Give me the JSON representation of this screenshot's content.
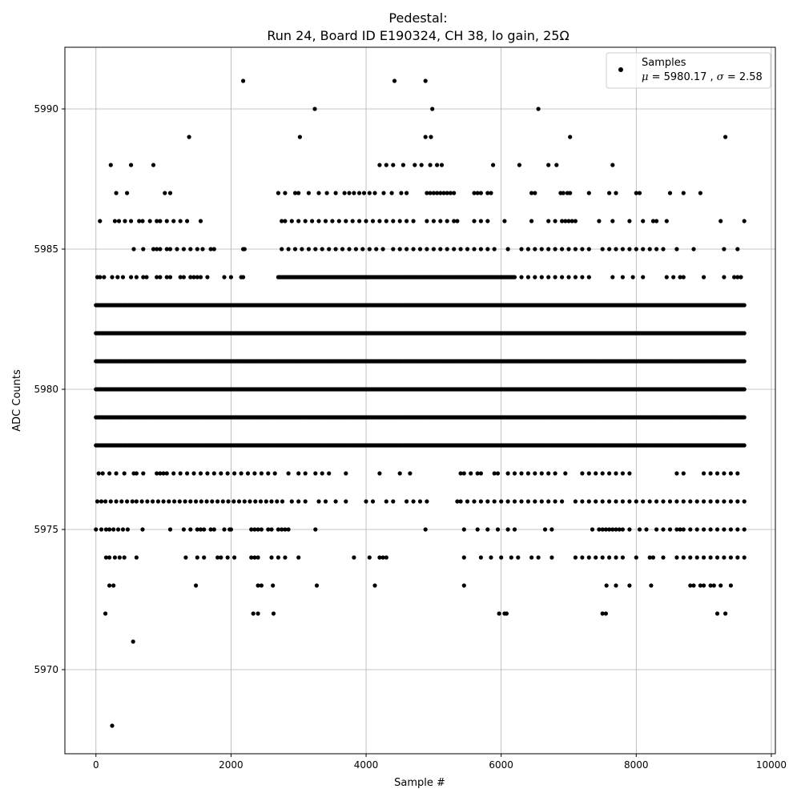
{
  "chart_data": {
    "type": "scatter",
    "title_line1": "Pedestal:",
    "title_line2": "Run 24, Board ID E190324, CH 38, lo gain, 25Ω",
    "xlabel": "Sample #",
    "ylabel": "ADC Counts",
    "xlim": [
      -460,
      10060
    ],
    "ylim": [
      5967.0,
      5992.2
    ],
    "xticks": [
      0,
      2000,
      4000,
      6000,
      8000,
      10000
    ],
    "yticks": [
      5970,
      5975,
      5980,
      5985,
      5990
    ],
    "grid": true,
    "legend_position": "top-right",
    "marker_color": "#000000",
    "n_samples": 9600,
    "series": [
      {
        "name": "Samples",
        "stats": {
          "mean_label": "μ",
          "mean": "5980.17",
          "sigma_label": "σ",
          "sigma": "2.58"
        },
        "dense_levels": [
          {
            "y": 5978,
            "x_range": [
              0,
              9600
            ]
          },
          {
            "y": 5979,
            "x_range": [
              0,
              9600
            ]
          },
          {
            "y": 5980,
            "x_range": [
              0,
              9600
            ]
          },
          {
            "y": 5981,
            "x_range": [
              0,
              9600
            ]
          },
          {
            "y": 5982,
            "x_range": [
              0,
              9600
            ]
          },
          {
            "y": 5983,
            "x_range": [
              0,
              9600
            ]
          },
          {
            "y": 5984,
            "x_range": [
              2700,
              6200
            ]
          }
        ],
        "level_samples": [
          {
            "y": 5987,
            "x": [
              300,
              460,
              1020,
              1100,
              2700,
              2800,
              2950,
              3000,
              3150,
              3300,
              3420,
              3550,
              3680,
              3750,
              3820,
              3900,
              3970,
              4050,
              4130,
              4260,
              4380,
              4520,
              4600,
              4900,
              4950,
              5000,
              5050,
              5100,
              5150,
              5200,
              5250,
              5300,
              5600,
              5650,
              5700,
              5800,
              5850,
              6450,
              6500,
              6880,
              6920,
              6980,
              7020,
              7300,
              7600,
              7700,
              8000,
              8050,
              8500,
              8700,
              8950
            ]
          },
          {
            "y": 5986,
            "x": [
              60,
              280,
              340,
              430,
              520,
              640,
              690,
              800,
              900,
              950,
              1050,
              1150,
              1250,
              1350,
              1550,
              2750,
              2800,
              2900,
              3000,
              3100,
              3200,
              3300,
              3400,
              3500,
              3600,
              3700,
              3800,
              3900,
              4000,
              4100,
              4200,
              4300,
              4400,
              4500,
              4600,
              4700,
              4900,
              5000,
              5100,
              5200,
              5300,
              5350,
              5600,
              5700,
              5800,
              6050,
              6450,
              6700,
              6800,
              6900,
              6950,
              7000,
              7050,
              7100,
              7450,
              7650,
              7900,
              8100,
              8250,
              8300,
              8450,
              9250,
              9600
            ]
          },
          {
            "y": 5985,
            "x": [
              560,
              700,
              850,
              900,
              950,
              1050,
              1100,
              1200,
              1300,
              1400,
              1500,
              1580,
              1700,
              1750,
              2180,
              2200,
              2750,
              2850,
              2950,
              3050,
              3150,
              3250,
              3350,
              3450,
              3550,
              3650,
              3750,
              3850,
              3950,
              4050,
              4150,
              4250,
              4400,
              4500,
              4600,
              4700,
              4800,
              4900,
              5000,
              5100,
              5200,
              5300,
              5400,
              5500,
              5600,
              5700,
              5800,
              5900,
              6100,
              6300,
              6400,
              6500,
              6600,
              6700,
              6800,
              6900,
              7000,
              7100,
              7200,
              7300,
              7500,
              7600,
              7700,
              7800,
              7900,
              8000,
              8100,
              8200,
              8300,
              8400,
              8600,
              8850,
              9300,
              9500
            ]
          },
          {
            "y": 5984,
            "x": [
              20,
              60,
              120,
              240,
              320,
              400,
              520,
              600,
              700,
              750,
              900,
              950,
              1050,
              1100,
              1250,
              1300,
              1400,
              1450,
              1500,
              1550,
              1650,
              1900,
              2000,
              2150,
              2180,
              6300,
              6400,
              6500,
              6600,
              6700,
              6800,
              6900,
              7000,
              7100,
              7200,
              7300,
              7650,
              7800,
              7950,
              8100,
              8450,
              8550,
              8650,
              8700,
              9000,
              9300,
              9450,
              9500,
              9550
            ]
          },
          {
            "y": 5977,
            "x": [
              40,
              100,
              200,
              300,
              420,
              560,
              600,
              700,
              900,
              950,
              1000,
              1050,
              1150,
              1250,
              1350,
              1450,
              1550,
              1650,
              1750,
              1850,
              1950,
              2050,
              2150,
              2250,
              2350,
              2450,
              2550,
              2650,
              2850,
              3000,
              3100,
              3250,
              3350,
              3450,
              3700,
              4200,
              4500,
              4650,
              5400,
              5450,
              5550,
              5650,
              5700,
              5900,
              5950,
              6100,
              6200,
              6300,
              6400,
              6500,
              6600,
              6700,
              6800,
              6950,
              7200,
              7300,
              7400,
              7500,
              7600,
              7700,
              7800,
              7900,
              8600,
              8700,
              9000,
              9100,
              9200,
              9300,
              9400,
              9500
            ]
          },
          {
            "y": 5976,
            "x": [
              20,
              80,
              140,
              220,
              300,
              380,
              460,
              540,
              600,
              680,
              760,
              840,
              920,
              1000,
              1080,
              1160,
              1240,
              1320,
              1400,
              1480,
              1560,
              1640,
              1720,
              1800,
              1880,
              1960,
              2040,
              2120,
              2200,
              2280,
              2360,
              2440,
              2520,
              2600,
              2680,
              2760,
              2900,
              3000,
              3100,
              3300,
              3400,
              3550,
              3700,
              4000,
              4100,
              4300,
              4400,
              4600,
              4700,
              4800,
              4900,
              5350,
              5400,
              5500,
              5600,
              5700,
              5800,
              5900,
              6000,
              6100,
              6200,
              6300,
              6400,
              6500,
              6600,
              6700,
              6800,
              6900,
              7100,
              7200,
              7300,
              7400,
              7500,
              7600,
              7700,
              7800,
              7900,
              8000,
              8100,
              8200,
              8300,
              8400,
              8500,
              8600,
              8700,
              8800,
              8900,
              9000,
              9100,
              9200,
              9300,
              9400,
              9500,
              9600
            ]
          },
          {
            "y": 5975,
            "x": [
              0,
              80,
              150,
              200,
              260,
              330,
              400,
              470,
              690,
              1100,
              1300,
              1400,
              1500,
              1550,
              1600,
              1700,
              1750,
              1900,
              1980,
              2000,
              2300,
              2350,
              2400,
              2450,
              2550,
              2600,
              2700,
              2750,
              2800,
              2850,
              3250,
              4880,
              5450,
              5650,
              5800,
              5950,
              6100,
              6200,
              6650,
              6750,
              7350,
              7450,
              7500,
              7550,
              7600,
              7650,
              7700,
              7750,
              7800,
              7900,
              8050,
              8150,
              8300,
              8400,
              8500,
              8600,
              8650,
              8700,
              8800,
              8900,
              9000,
              9100,
              9200,
              9300,
              9400,
              9500,
              9600
            ]
          },
          {
            "y": 5974,
            "x": [
              150,
              200,
              280,
              350,
              420,
              600,
              1330,
              1500,
              1600,
              1800,
              1850,
              1950,
              2050,
              2300,
              2350,
              2400,
              2600,
              2700,
              2800,
              3000,
              3820,
              4050,
              4200,
              4250,
              4300,
              5450,
              5700,
              5850,
              6000,
              6150,
              6250,
              6450,
              6550,
              6750,
              7100,
              7200,
              7300,
              7400,
              7500,
              7600,
              7700,
              7800,
              8000,
              8200,
              8250,
              8400,
              8600,
              8700,
              8800,
              8900,
              9000,
              9100,
              9200,
              9300,
              9400,
              9500,
              9600
            ]
          },
          {
            "y": 5973,
            "x": [
              200,
              260,
              1480,
              2400,
              2450,
              2620,
              3270,
              4130,
              5450,
              7560,
              7700,
              7900,
              8220,
              8800,
              8850,
              8950,
              9000,
              9100,
              9150,
              9250,
              9400
            ]
          },
          {
            "y": 5972,
            "x": [
              140,
              2330,
              2400,
              2630,
              5970,
              6050,
              6080,
              7500,
              7550,
              9200,
              9320
            ]
          },
          {
            "y": 5971,
            "x": [
              550
            ]
          },
          {
            "y": 5968,
            "x": [
              240
            ]
          },
          {
            "y": 5988,
            "x": [
              220,
              520,
              850,
              4200,
              4300,
              4400,
              4550,
              4720,
              4820,
              4950,
              5050,
              5120,
              5880,
              6270,
              6700,
              6820,
              7650
            ]
          },
          {
            "y": 5989,
            "x": [
              1380,
              3020,
              4880,
              4960,
              7020,
              9320
            ]
          },
          {
            "y": 5990,
            "x": [
              3240,
              4980,
              6550
            ]
          },
          {
            "y": 5991,
            "x": [
              2180,
              4420,
              4880
            ]
          }
        ]
      }
    ]
  }
}
